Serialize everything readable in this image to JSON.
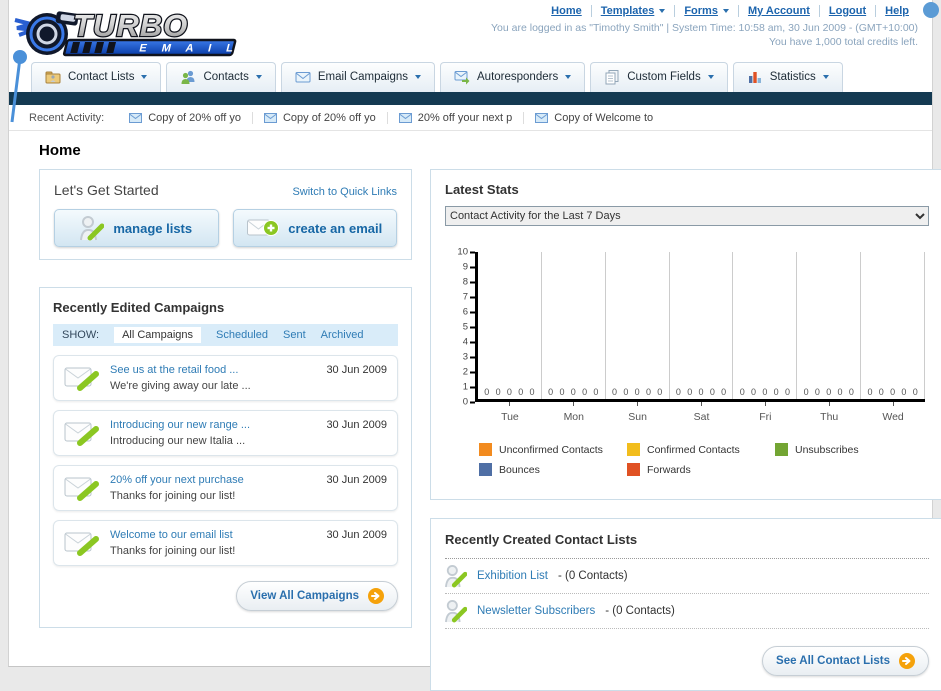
{
  "header": {
    "logo_title": "TURBO",
    "logo_subtitle": "E M A I L",
    "links": [
      "Home",
      "Templates",
      "Forms",
      "My Account",
      "Logout",
      "Help"
    ],
    "status_line": "You are logged in as \"Timothy Smith\" | System Time: 10:58 am, 30 Jun 2009 - (GMT+10:00)",
    "credits_line": "You have 1,000 total credits left."
  },
  "nav_tabs": [
    {
      "label": "Contact Lists",
      "icon": "contact-lists-icon"
    },
    {
      "label": "Contacts",
      "icon": "contacts-icon"
    },
    {
      "label": "Email Campaigns",
      "icon": "email-campaigns-icon"
    },
    {
      "label": "Autoresponders",
      "icon": "autoresponders-icon"
    },
    {
      "label": "Custom Fields",
      "icon": "custom-fields-icon"
    },
    {
      "label": "Statistics",
      "icon": "statistics-icon"
    }
  ],
  "recent_activity": {
    "label": "Recent Activity:",
    "items": [
      "Copy of 20% off yo",
      "Copy of 20% off yo",
      "20% off your next p",
      "Copy of Welcome to"
    ]
  },
  "page_title": "Home",
  "get_started": {
    "title": "Let's Get Started",
    "switch_link": "Switch to Quick Links",
    "manage_lists_label": "manage lists",
    "create_email_label": "create an email"
  },
  "campaigns": {
    "title": "Recently Edited Campaigns",
    "show_label": "SHOW:",
    "filters": [
      "All Campaigns",
      "Scheduled",
      "Sent",
      "Archived"
    ],
    "active_filter": "All Campaigns",
    "view_all_label": "View All Campaigns",
    "items": [
      {
        "title": "See us at the retail food ...",
        "subtitle": "We're giving away our late ...",
        "date": "30 Jun 2009"
      },
      {
        "title": "Introducing our new range ...",
        "subtitle": "Introducing our new Italia ...",
        "date": "30 Jun 2009"
      },
      {
        "title": "20% off your next purchase",
        "subtitle": "Thanks for joining our list!",
        "date": "30 Jun 2009"
      },
      {
        "title": "Welcome to our email list",
        "subtitle": "Thanks for joining our list!",
        "date": "30 Jun 2009"
      }
    ]
  },
  "latest_stats": {
    "title": "Latest Stats",
    "dropdown_value": "Contact Activity for the Last 7 Days"
  },
  "chart_data": {
    "type": "bar",
    "title": "Contact Activity for the Last 7 Days",
    "categories": [
      "Tue",
      "Mon",
      "Sun",
      "Sat",
      "Fri",
      "Thu",
      "Wed"
    ],
    "series": [
      {
        "name": "Unconfirmed Contacts",
        "color": "#F28B1F",
        "values": [
          0,
          0,
          0,
          0,
          0,
          0,
          0
        ]
      },
      {
        "name": "Confirmed Contacts",
        "color": "#F2BD1D",
        "values": [
          0,
          0,
          0,
          0,
          0,
          0,
          0
        ]
      },
      {
        "name": "Unsubscribes",
        "color": "#73A533",
        "values": [
          0,
          0,
          0,
          0,
          0,
          0,
          0
        ]
      },
      {
        "name": "Bounces",
        "color": "#4F6FA5",
        "values": [
          0,
          0,
          0,
          0,
          0,
          0,
          0
        ]
      },
      {
        "name": "Forwards",
        "color": "#E05123",
        "values": [
          0,
          0,
          0,
          0,
          0,
          0,
          0
        ]
      }
    ],
    "ylim": [
      0,
      10
    ],
    "ytick_step": 1,
    "grid": true,
    "legend_position": "bottom"
  },
  "contact_lists": {
    "title": "Recently Created Contact Lists",
    "see_all_label": "See All Contact Lists",
    "items": [
      {
        "name": "Exhibition List",
        "detail": "- (0 Contacts)"
      },
      {
        "name": "Newsletter Subscribers",
        "detail": "- (0 Contacts)"
      }
    ]
  },
  "colors": {
    "accent_blue": "#2f7cb5",
    "navy_bar": "#143a52",
    "arrow_orange": "#f5a20b"
  }
}
